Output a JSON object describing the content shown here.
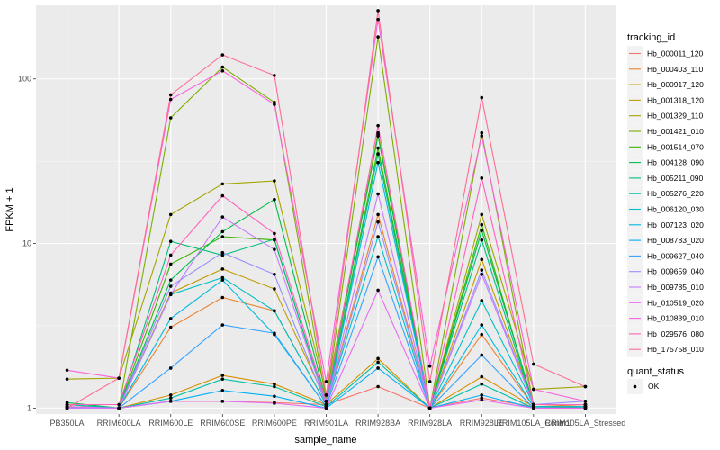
{
  "chart_data": {
    "type": "line",
    "title": "",
    "xlabel": "sample_name",
    "ylabel": "FPKM + 1",
    "y_scale": "log10",
    "ylim": [
      0.92,
      280
    ],
    "y_ticks": [
      1,
      10,
      100
    ],
    "y_tick_labels": [
      "1",
      "10",
      "100"
    ],
    "grid": true,
    "legend_position": "right",
    "categories": [
      "PB350LA",
      "RRIM600LA",
      "RRIM600LE",
      "RRIM600SE",
      "RRIM600PE",
      "RRIM901LA",
      "RRIM928BA",
      "RRIM928LA",
      "RRIM928LE",
      "RRIM105LA_Control",
      "RRIM105LA_Stressed"
    ],
    "color_legend_title": "tracking_id",
    "point_legend_title": "quant_status",
    "point_legend_label": "OK",
    "series": [
      {
        "name": "Hb_000011_120",
        "color": "#F8766D",
        "values": [
          1.05,
          1.0,
          1.1,
          1.1,
          1.08,
          1.05,
          1.35,
          1.0,
          1.15,
          1.02,
          1.02
        ]
      },
      {
        "name": "Hb_000403_110",
        "color": "#EA8331",
        "values": [
          1.02,
          1.0,
          3.1,
          4.7,
          3.9,
          1.05,
          15.0,
          1.0,
          2.8,
          1.02,
          1.05
        ]
      },
      {
        "name": "Hb_000917_120",
        "color": "#D89000",
        "values": [
          1.0,
          1.0,
          1.2,
          1.58,
          1.4,
          1.05,
          2.0,
          1.0,
          1.55,
          1.02,
          1.0
        ]
      },
      {
        "name": "Hb_001318_120",
        "color": "#C09B00",
        "values": [
          1.05,
          1.0,
          5.0,
          7.0,
          5.3,
          1.1,
          47.0,
          1.0,
          8.0,
          1.05,
          1.05
        ]
      },
      {
        "name": "Hb_001329_110",
        "color": "#A3A500",
        "values": [
          1.5,
          1.52,
          15.0,
          23.0,
          24.0,
          1.2,
          46.0,
          1.0,
          15.0,
          1.3,
          1.35
        ]
      },
      {
        "name": "Hb_001421_010",
        "color": "#7CAE00",
        "values": [
          1.02,
          1.0,
          58.0,
          118.0,
          72.0,
          1.1,
          180.0,
          1.0,
          47.0,
          1.05,
          1.05
        ]
      },
      {
        "name": "Hb_001514_070",
        "color": "#39B600",
        "values": [
          1.0,
          1.0,
          7.5,
          11.0,
          10.5,
          1.05,
          38.0,
          1.0,
          13.0,
          1.02,
          1.02
        ]
      },
      {
        "name": "Hb_004128_090",
        "color": "#00BB4E",
        "values": [
          1.08,
          1.0,
          6.0,
          11.8,
          18.5,
          1.1,
          45.0,
          1.0,
          12.0,
          1.05,
          1.05
        ]
      },
      {
        "name": "Hb_005211_090",
        "color": "#00BF7D",
        "values": [
          1.02,
          1.0,
          10.3,
          8.5,
          10.6,
          1.05,
          35.0,
          1.0,
          10.5,
          1.02,
          1.02
        ]
      },
      {
        "name": "Hb_005276_220",
        "color": "#00C1A3",
        "values": [
          1.0,
          1.0,
          1.15,
          1.5,
          1.35,
          1.02,
          1.9,
          1.0,
          1.4,
          1.0,
          1.0
        ]
      },
      {
        "name": "Hb_006120_030",
        "color": "#00BFC4",
        "values": [
          1.05,
          1.0,
          4.9,
          6.2,
          3.9,
          1.05,
          11.0,
          1.0,
          4.5,
          1.05,
          1.05
        ]
      },
      {
        "name": "Hb_007123_020",
        "color": "#00BAE0",
        "values": [
          1.0,
          1.0,
          3.5,
          6.0,
          2.8,
          1.02,
          31.0,
          1.0,
          3.2,
          1.02,
          1.02
        ]
      },
      {
        "name": "Hb_008783_020",
        "color": "#00B0F6",
        "values": [
          1.0,
          1.0,
          1.1,
          1.28,
          1.18,
          1.0,
          1.75,
          1.0,
          1.2,
          1.0,
          1.0
        ]
      },
      {
        "name": "Hb_009627_040",
        "color": "#35A2FF",
        "values": [
          1.0,
          1.0,
          1.75,
          3.2,
          2.85,
          1.02,
          8.3,
          1.0,
          2.1,
          1.0,
          1.0
        ]
      },
      {
        "name": "Hb_009659_040",
        "color": "#9590FF",
        "values": [
          1.0,
          1.0,
          5.5,
          8.8,
          6.5,
          1.05,
          13.5,
          1.0,
          6.9,
          1.05,
          1.1
        ]
      },
      {
        "name": "Hb_009785_010",
        "color": "#C77CFF",
        "values": [
          1.0,
          1.0,
          4.9,
          14.5,
          9.2,
          1.05,
          20.0,
          1.0,
          6.5,
          1.05,
          1.05
        ]
      },
      {
        "name": "Hb_010519_020",
        "color": "#E76BF3",
        "values": [
          1.02,
          1.0,
          1.1,
          1.1,
          1.07,
          1.0,
          5.2,
          1.0,
          1.12,
          1.0,
          1.0
        ]
      },
      {
        "name": "Hb_010839_010",
        "color": "#FA62DB",
        "values": [
          1.7,
          1.52,
          75.0,
          112.0,
          70.0,
          1.45,
          230.0,
          1.8,
          45.0,
          1.3,
          1.1
        ]
      },
      {
        "name": "Hb_029576_080",
        "color": "#FF62BC",
        "values": [
          1.05,
          1.05,
          8.5,
          19.5,
          11.5,
          1.1,
          52.0,
          1.0,
          25.0,
          1.05,
          1.05
        ]
      },
      {
        "name": "Hb_175758_010",
        "color": "#FF6C91",
        "values": [
          1.0,
          1.52,
          80.0,
          140.0,
          105.0,
          1.2,
          260.0,
          1.45,
          77.0,
          1.85,
          1.35
        ]
      }
    ]
  }
}
